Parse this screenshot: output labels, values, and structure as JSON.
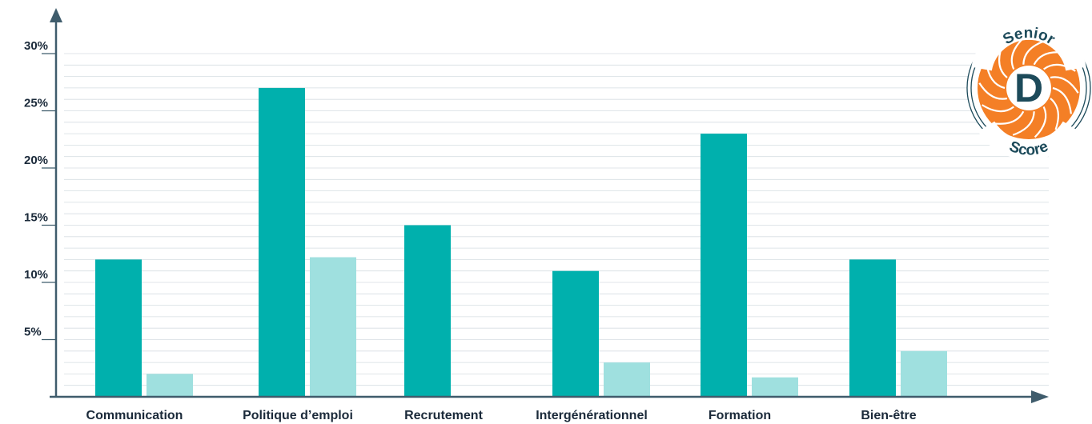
{
  "chart_data": {
    "type": "bar",
    "categories": [
      "Communication",
      "Politique d’emploi",
      "Recrutement",
      "Intergénérationnel",
      "Formation",
      "Bien-être"
    ],
    "series": [
      {
        "values": [
          12,
          27,
          15,
          11,
          23,
          12
        ],
        "color": "#00b0ad"
      },
      {
        "values": [
          2,
          12.2,
          0,
          3,
          1.7,
          4
        ],
        "color": "#9fe0df"
      }
    ],
    "ylim": [
      0,
      30
    ],
    "yticks": [
      "5%",
      "10%",
      "15%",
      "20%",
      "25%",
      "30%"
    ],
    "ytick_values": [
      5,
      10,
      15,
      20,
      25,
      30
    ],
    "grid": true,
    "xlabel": "",
    "ylabel": ""
  },
  "badge": {
    "top_text": "Senior",
    "center_letter": "D",
    "bottom_text": "Score",
    "primary_color": "#f47f26",
    "text_color": "#1c4a5a"
  },
  "colors": {
    "axis": "#3f5c6c",
    "grid": "#d6dde2"
  }
}
